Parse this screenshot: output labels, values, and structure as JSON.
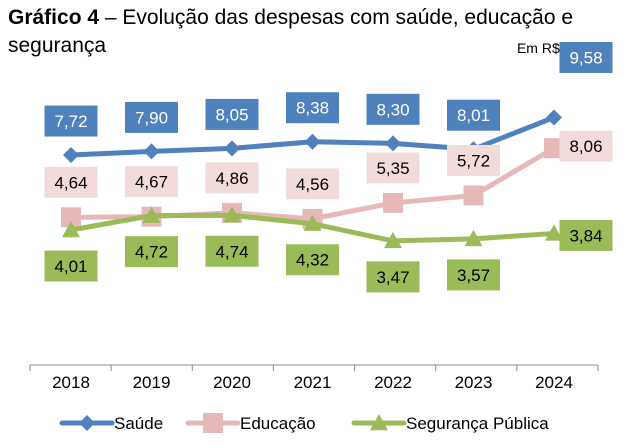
{
  "header": {
    "title_bold": "Gráfico 4",
    "title_rest": " – Evolução das despesas com saúde, educação e segurança",
    "unit": "Em R$ bilhões"
  },
  "chart_data": {
    "type": "line",
    "title": "Gráfico 4 – Evolução das despesas com saúde, educação e segurança",
    "xlabel": "",
    "ylabel": "",
    "unit": "Em R$ bilhões",
    "grid": false,
    "legend_position": "bottom",
    "categories": [
      "2018",
      "2019",
      "2020",
      "2021",
      "2022",
      "2023",
      "2024"
    ],
    "series": [
      {
        "name": "Saúde",
        "color": "#4F81BD",
        "label_bg": "#4F81BD",
        "label_color": "#ffffff",
        "marker": "diamond",
        "values": [
          7.72,
          7.9,
          8.05,
          8.38,
          8.3,
          8.01,
          9.58
        ],
        "labels": [
          "7,72",
          "7,90",
          "8,05",
          "8,38",
          "8,30",
          "8,01",
          "9,58"
        ]
      },
      {
        "name": "Educação",
        "color": "#E6B9B8",
        "label_bg": "#F2DCDB",
        "label_color": "#000000",
        "marker": "square",
        "values": [
          4.64,
          4.67,
          4.86,
          4.56,
          5.35,
          5.72,
          8.06
        ],
        "labels": [
          "4,64",
          "4,67",
          "4,86",
          "4,56",
          "5,35",
          "5,72",
          "8,06"
        ]
      },
      {
        "name": "Segurança Pública",
        "color": "#9BBB59",
        "label_bg": "#9BBB59",
        "label_color": "#000000",
        "marker": "triangle",
        "values": [
          4.01,
          4.72,
          4.74,
          4.32,
          3.47,
          3.57,
          3.84
        ],
        "labels": [
          "4,01",
          "4,72",
          "4,74",
          "4,32",
          "3,47",
          "3,57",
          "3,84"
        ]
      }
    ]
  }
}
